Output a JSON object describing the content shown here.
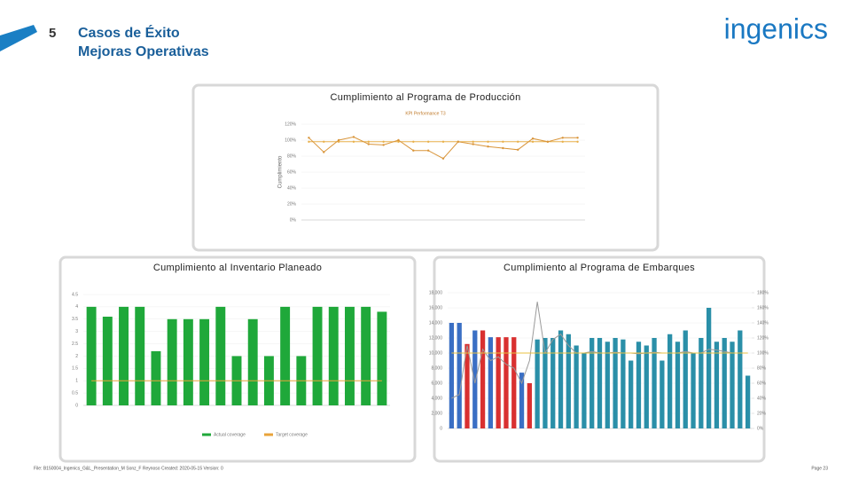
{
  "header": {
    "number": "5",
    "title_line1": "Casos de Éxito",
    "title_line2": "Mejoras Operativas",
    "logo": "ingenics"
  },
  "footer": {
    "left": "File: B150004_Ingenics_G&L_Presentation_M Sonz_F Reynoso Created: 2020-05-15 Version: 0",
    "right": "Page 23"
  },
  "chart_data": [
    {
      "type": "line",
      "title": "Cumplimiento al Programa de Producción",
      "subtitle": "KPI Performance T3",
      "ylabel": "Cumplimiento",
      "ylim": [
        0,
        120
      ],
      "yticks": [
        {
          "value": 0,
          "label": "0%"
        },
        {
          "value": 20,
          "label": "20%"
        },
        {
          "value": 40,
          "label": "40%"
        },
        {
          "value": 60,
          "label": "60%"
        },
        {
          "value": 80,
          "label": "80%"
        },
        {
          "value": 100,
          "label": "100%"
        },
        {
          "value": 120,
          "label": "120%"
        }
      ],
      "series": [
        {
          "type": "line",
          "color": "#e8b04a",
          "values": [
            98,
            98,
            98,
            98,
            98,
            98,
            98,
            98,
            98,
            98,
            98,
            98,
            98,
            98,
            98,
            98,
            98,
            98,
            98
          ]
        },
        {
          "type": "line",
          "color": "#d9953a",
          "values": [
            103,
            85,
            100,
            104,
            95,
            94,
            100,
            87,
            87,
            77,
            98,
            95,
            92,
            90,
            88,
            102,
            98,
            103,
            103
          ]
        }
      ]
    },
    {
      "type": "bar",
      "title": "Cumplimiento al Inventario Planeado",
      "ylim": [
        0,
        4.5
      ],
      "yticks": [
        0,
        0.5,
        1,
        1.5,
        2,
        2.5,
        3,
        3.5,
        4,
        4.5
      ],
      "series": [
        {
          "type": "bar",
          "name": "Actual coverage",
          "color": "#1fa83a",
          "values": [
            4,
            3.6,
            4,
            4,
            2.2,
            3.5,
            3.5,
            3.5,
            4,
            2,
            3.5,
            2,
            4,
            2,
            4,
            4,
            4,
            4,
            3.8
          ]
        },
        {
          "type": "line",
          "name": "Target coverage",
          "color": "#e8a33a",
          "values": [
            1,
            1,
            1,
            1,
            1,
            1,
            1,
            1,
            1,
            1,
            1,
            1,
            1,
            1,
            1,
            1,
            1,
            1,
            1
          ]
        }
      ]
    },
    {
      "type": "bar",
      "title": "Cumplimiento al Programa de Embarques",
      "ylim": [
        0,
        18000
      ],
      "yticks": [
        0,
        {
          "value": 2000,
          "label": "2,000"
        },
        {
          "value": 4000,
          "label": "4,000"
        },
        {
          "value": 6000,
          "label": "6,000"
        },
        {
          "value": 8000,
          "label": "8,000"
        },
        {
          "value": 10000,
          "label": "10,000"
        },
        {
          "value": 12000,
          "label": "12,000"
        },
        {
          "value": 14000,
          "label": "14,000"
        },
        {
          "value": 16000,
          "label": "16,000"
        },
        {
          "value": 18000,
          "label": "18,000"
        }
      ],
      "y2lim": [
        0,
        180
      ],
      "y2ticks": [
        {
          "value": 0,
          "label": "0%"
        },
        {
          "value": 20,
          "label": "20%"
        },
        {
          "value": 40,
          "label": "40%"
        },
        {
          "value": 60,
          "label": "60%"
        },
        {
          "value": 80,
          "label": "80%"
        },
        {
          "value": 100,
          "label": "100%"
        },
        {
          "value": 120,
          "label": "120%"
        },
        {
          "value": 140,
          "label": "140%"
        },
        {
          "value": 160,
          "label": "160%"
        },
        {
          "value": 180,
          "label": "180%"
        }
      ],
      "series": [
        {
          "type": "bar",
          "colors": [
            "#3a6fc4",
            "#3a6fc4",
            "#d93030",
            "#3a6fc4",
            "#d93030",
            "#3a6fc4",
            "#d93030",
            "#d93030",
            "#d93030",
            "#3a6fc4",
            "#d93030",
            "#2a8fa8",
            "#2a8fa8",
            "#2a8fa8",
            "#2a8fa8",
            "#2a8fa8",
            "#2a8fa8",
            "#2a8fa8",
            "#2a8fa8",
            "#2a8fa8",
            "#2a8fa8",
            "#2a8fa8",
            "#2a8fa8",
            "#2a8fa8",
            "#2a8fa8",
            "#2a8fa8",
            "#2a8fa8",
            "#2a8fa8",
            "#2a8fa8",
            "#2a8fa8",
            "#2a8fa8",
            "#2a8fa8",
            "#2a8fa8",
            "#2a8fa8",
            "#2a8fa8",
            "#2a8fa8",
            "#2a8fa8",
            "#2a8fa8",
            "#2a8fa8"
          ],
          "values": [
            14000,
            14000,
            11200,
            13000,
            13000,
            12100,
            12100,
            12100,
            12100,
            7400,
            6000,
            11800,
            12000,
            12000,
            13000,
            12500,
            11000,
            10000,
            12000,
            12000,
            11500,
            12000,
            11800,
            9000,
            11500,
            11000,
            12000,
            9000,
            12500,
            11500,
            13000,
            10000,
            12000,
            16000,
            11500,
            12000,
            11500,
            13000,
            7000
          ]
        },
        {
          "type": "line",
          "axis": "y2",
          "color": "#9a9a9a",
          "values": [
            40,
            45,
            110,
            60,
            105,
            90,
            95,
            85,
            80,
            60,
            90,
            168,
            100,
            118,
            125,
            110,
            100,
            100,
            102,
            100,
            100,
            101,
            100,
            100,
            99,
            100,
            101,
            100,
            100,
            100,
            102,
            100,
            100,
            105,
            104,
            102,
            100,
            100,
            100
          ]
        },
        {
          "type": "line",
          "axis": "y2",
          "color": "#e8c040",
          "values": [
            100,
            100,
            100,
            100,
            100,
            100,
            100,
            100,
            100,
            100,
            100,
            100,
            100,
            100,
            100,
            100,
            100,
            100,
            100,
            100,
            100,
            100,
            100,
            100,
            100,
            100,
            100,
            100,
            100,
            100,
            100,
            100,
            100,
            100,
            100,
            100,
            100,
            100,
            100
          ]
        }
      ]
    }
  ]
}
